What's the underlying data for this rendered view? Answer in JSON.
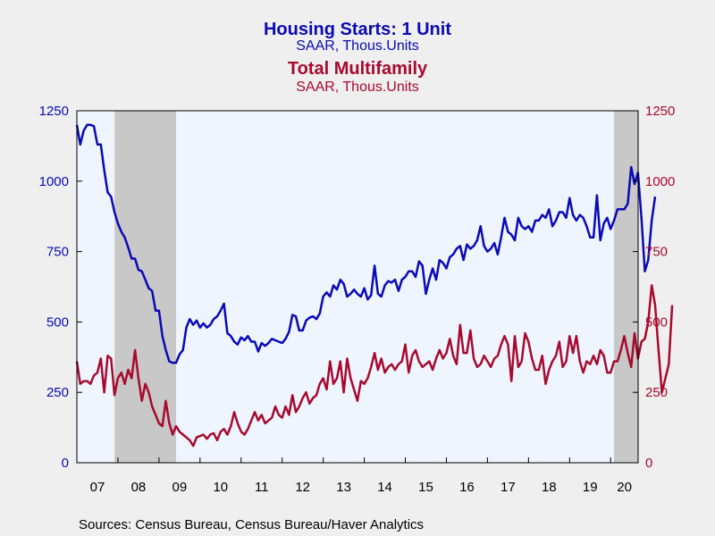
{
  "colors": {
    "series1": "#0a0ab4",
    "series2": "#a80a2e",
    "plot_bg": "#eef5ff",
    "recession": "#c8c8c8",
    "page_bg": "#efefef"
  },
  "footer": {
    "source": "Sources:  Census Bureau, Census Bureau/Haver Analytics"
  },
  "chart_data": {
    "type": "line",
    "title": "Housing Starts: 1 Unit",
    "subtitle": "SAAR, Thous.Units",
    "title2": "Total Multifamily",
    "subtitle2": "SAAR, Thous.Units",
    "x_tick_labels": [
      "07",
      "08",
      "09",
      "10",
      "11",
      "12",
      "13",
      "14",
      "15",
      "16",
      "17",
      "18",
      "19",
      "20"
    ],
    "y_ticks": [
      "0",
      "250",
      "500",
      "750",
      "1000",
      "1250"
    ],
    "ylim": [
      0,
      1250
    ],
    "x_start": 2007.0,
    "x_end": 2020.67,
    "recessions": [
      [
        2007.917,
        2009.417
      ],
      [
        2020.083,
        2020.67
      ]
    ],
    "grid": false,
    "series": [
      {
        "name": "Housing Starts: 1 Unit",
        "axis": "left",
        "values": [
          1200,
          1130,
          1180,
          1200,
          1200,
          1195,
          1130,
          1130,
          1040,
          960,
          945,
          890,
          850,
          820,
          800,
          765,
          725,
          725,
          685,
          680,
          650,
          620,
          610,
          540,
          540,
          450,
          400,
          360,
          355,
          355,
          385,
          400,
          480,
          510,
          490,
          505,
          480,
          495,
          480,
          490,
          510,
          520,
          540,
          565,
          460,
          450,
          430,
          420,
          445,
          435,
          450,
          430,
          430,
          395,
          425,
          415,
          425,
          440,
          435,
          430,
          425,
          440,
          465,
          525,
          520,
          470,
          470,
          505,
          515,
          520,
          510,
          530,
          590,
          605,
          590,
          630,
          615,
          650,
          635,
          590,
          600,
          615,
          600,
          590,
          620,
          580,
          595,
          700,
          600,
          590,
          630,
          645,
          640,
          650,
          610,
          650,
          660,
          680,
          680,
          660,
          715,
          700,
          600,
          650,
          690,
          650,
          720,
          710,
          690,
          730,
          740,
          760,
          770,
          720,
          775,
          760,
          770,
          790,
          840,
          770,
          750,
          760,
          780,
          740,
          800,
          870,
          820,
          810,
          790,
          870,
          840,
          830,
          840,
          820,
          860,
          860,
          880,
          870,
          900,
          840,
          860,
          890,
          890,
          870,
          940,
          880,
          860,
          880,
          870,
          840,
          800,
          800,
          950,
          790,
          850,
          870,
          830,
          860,
          900,
          900,
          900,
          920,
          1050,
          990,
          1030,
          870,
          680,
          720,
          860,
          945
        ]
      },
      {
        "name": "Total Multifamily",
        "axis": "right",
        "values": [
          360,
          280,
          290,
          290,
          280,
          310,
          320,
          370,
          250,
          380,
          370,
          240,
          300,
          320,
          280,
          330,
          300,
          400,
          300,
          220,
          280,
          250,
          200,
          170,
          140,
          130,
          220,
          140,
          100,
          130,
          110,
          100,
          90,
          80,
          60,
          90,
          95,
          100,
          85,
          100,
          105,
          80,
          110,
          120,
          100,
          130,
          180,
          140,
          110,
          100,
          120,
          150,
          180,
          150,
          170,
          140,
          150,
          160,
          200,
          170,
          160,
          200,
          170,
          240,
          180,
          200,
          230,
          250,
          210,
          230,
          240,
          280,
          300,
          260,
          360,
          280,
          300,
          360,
          250,
          370,
          300,
          260,
          220,
          290,
          280,
          300,
          340,
          390,
          330,
          370,
          320,
          340,
          350,
          330,
          350,
          360,
          420,
          320,
          380,
          400,
          360,
          340,
          350,
          360,
          330,
          370,
          400,
          370,
          390,
          440,
          380,
          350,
          490,
          390,
          390,
          470,
          370,
          340,
          350,
          380,
          360,
          340,
          370,
          380,
          420,
          450,
          420,
          290,
          450,
          340,
          360,
          460,
          430,
          370,
          330,
          330,
          380,
          280,
          330,
          360,
          380,
          430,
          340,
          360,
          450,
          390,
          450,
          360,
          320,
          360,
          350,
          380,
          350,
          400,
          380,
          320,
          320,
          360,
          360,
          400,
          450,
          390,
          340,
          460,
          370,
          430,
          440,
          500,
          630,
          560,
          400,
          250,
          300,
          350,
          560
        ]
      }
    ]
  }
}
